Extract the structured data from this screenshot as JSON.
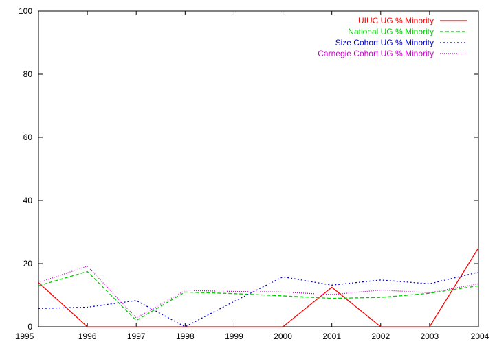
{
  "chart_data": {
    "type": "line",
    "title": "",
    "xlabel": "",
    "ylabel": "",
    "x": [
      1995,
      1996,
      1997,
      1998,
      1999,
      2000,
      2001,
      2002,
      2003,
      2004
    ],
    "xlim": [
      1995,
      2004
    ],
    "ylim": [
      0,
      100
    ],
    "xticks": [
      "1995",
      "1996",
      "1997",
      "1998",
      "1999",
      "2000",
      "2001",
      "2002",
      "2003",
      "2004"
    ],
    "yticks": [
      "0",
      "20",
      "40",
      "60",
      "80",
      "100"
    ],
    "grid": false,
    "legend_position": "top-right",
    "series": [
      {
        "name": "UIUC UG % Minority",
        "color": "#ff0000",
        "dash": "solid",
        "values": [
          14.0,
          0.0,
          0.0,
          0.0,
          0.0,
          0.0,
          12.5,
          0.0,
          0.0,
          25.0
        ]
      },
      {
        "name": "National UG % Minority",
        "color": "#00cc00",
        "dash": "dashed",
        "values": [
          13.0,
          17.5,
          2.0,
          11.0,
          10.5,
          9.8,
          9.0,
          9.3,
          10.6,
          13.0
        ]
      },
      {
        "name": "Size Cohort UG % Minority",
        "color": "#0000cc",
        "dash": "dotted",
        "values": [
          5.8,
          6.2,
          8.3,
          0.0,
          8.0,
          15.8,
          13.2,
          14.8,
          13.6,
          17.3
        ]
      },
      {
        "name": "Carnegie Cohort UG % Minority",
        "color": "#cc00cc",
        "dash": "fine-dotted",
        "values": [
          14.0,
          19.2,
          2.8,
          11.5,
          11.2,
          11.0,
          10.2,
          11.6,
          10.8,
          13.6
        ]
      }
    ]
  }
}
